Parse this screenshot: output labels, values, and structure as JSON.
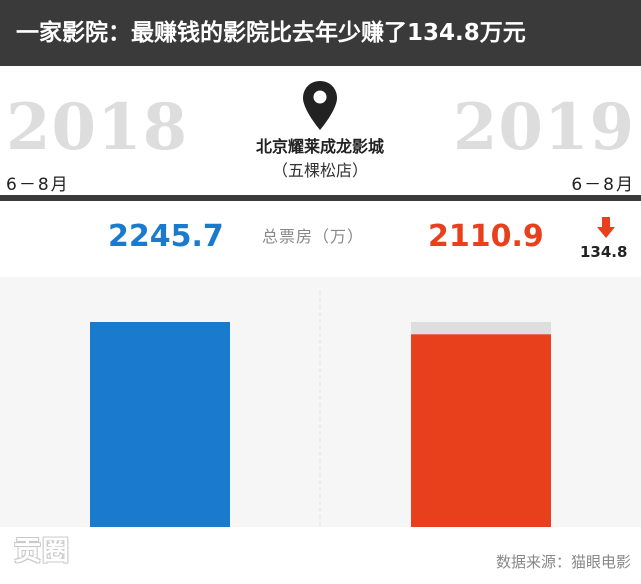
{
  "header": {
    "title": "一家影院：最赚钱的影院比去年少赚了134.8万元"
  },
  "left": {
    "year": "2018",
    "period": "6－8月"
  },
  "right": {
    "year": "2019",
    "period": "6－8月"
  },
  "cinema": {
    "name_line1": "北京耀莱成龙影城",
    "name_line2": "（五棵松店）"
  },
  "metric_label": "总票房（万）",
  "decrease": {
    "value": "134.8",
    "icon": "down-arrow-icon"
  },
  "source": "数据来源：猫眼电影",
  "logo": "贡圈",
  "colors": {
    "bar_2018": "#1a7acd",
    "bar_2019": "#e8401c",
    "gap": "#dedede",
    "header_bg": "#3a3a3a"
  },
  "chart_data": {
    "type": "bar",
    "categories": [
      "2018",
      "2019"
    ],
    "values": [
      2245.7,
      2110.9
    ],
    "value_labels": [
      "2245.7",
      "2110.9"
    ],
    "reference_max": 2245.7,
    "difference": 134.8,
    "title": "",
    "xlabel": "",
    "ylabel": "总票房（万）",
    "grid": false
  }
}
